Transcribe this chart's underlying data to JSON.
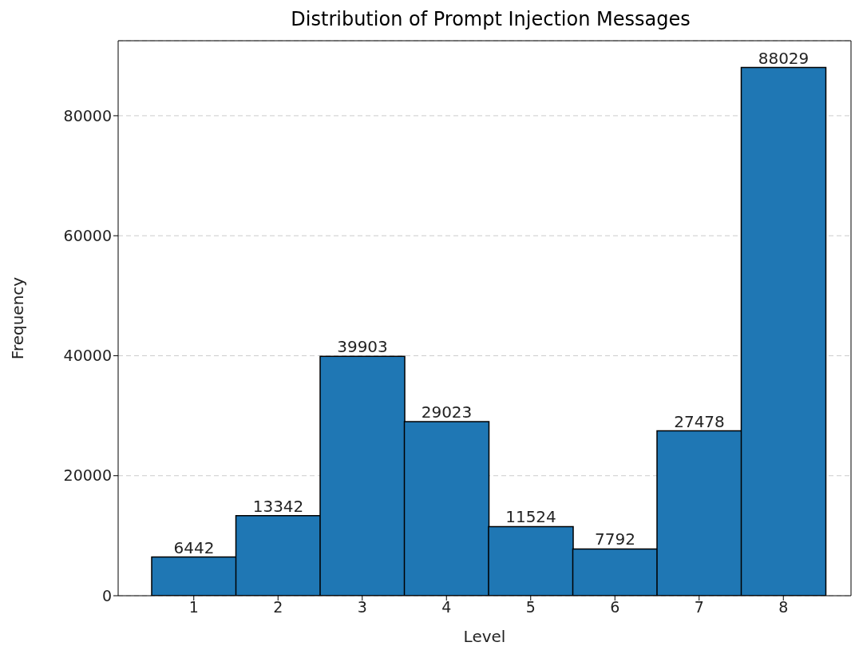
{
  "chart_data": {
    "type": "bar",
    "title": "Distribution of Prompt Injection Messages",
    "xlabel": "Level",
    "ylabel": "Frequency",
    "categories": [
      "1",
      "2",
      "3",
      "4",
      "5",
      "6",
      "7",
      "8"
    ],
    "values": [
      6442,
      13342,
      39903,
      29023,
      11524,
      7792,
      27478,
      88029
    ],
    "color": "#1f77b4",
    "ylim": [
      0,
      92500
    ],
    "yticks": [
      0,
      20000,
      40000,
      60000,
      80000
    ],
    "grid": "y",
    "data_labels": true
  }
}
